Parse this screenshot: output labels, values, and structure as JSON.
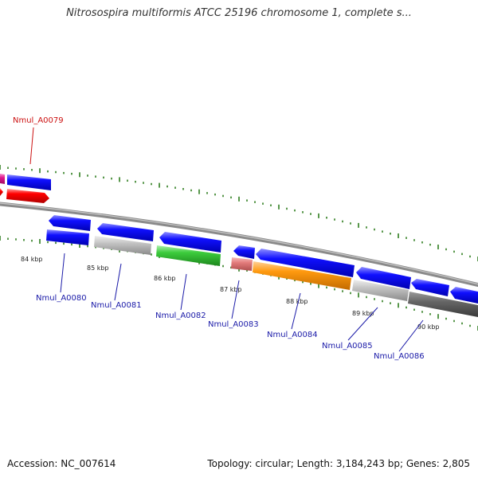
{
  "title": "Nitrosospira multiformis ATCC 25196 chromosome 1, complete s...",
  "footer": {
    "accession": "Accession: NC_007614",
    "summary": "Topology: circular; Length: 3,184,243 bp; Genes: 2,805"
  },
  "colors": {
    "blue": "#0a0aff",
    "red": "#ff0000",
    "pink": "#e37b7b",
    "magenta": "#e0158e",
    "green": "#2eb82e",
    "orange": "#ff8c00",
    "gray": "#b4b4b4",
    "darkgray": "#5a5a5a",
    "tick": "#2e7d1e",
    "label_blue": "#1a1aa8",
    "label_red": "#cc1111"
  },
  "kbp_labels": [
    "84 kbp",
    "85 kbp",
    "86 kbp",
    "87 kbp",
    "88 kbp",
    "89 kbp",
    "90 kbp"
  ],
  "gene_labels": [
    {
      "text": "Nmul_A0079",
      "color": "red"
    },
    {
      "text": "Nmul_A0080",
      "color": "blue"
    },
    {
      "text": "Nmul_A0081",
      "color": "blue"
    },
    {
      "text": "Nmul_A0082",
      "color": "blue"
    },
    {
      "text": "Nmul_A0083",
      "color": "blue"
    },
    {
      "text": "Nmul_A0084",
      "color": "blue"
    },
    {
      "text": "Nmul_A0085",
      "color": "blue"
    },
    {
      "text": "Nmul_A0086",
      "color": "blue"
    }
  ]
}
